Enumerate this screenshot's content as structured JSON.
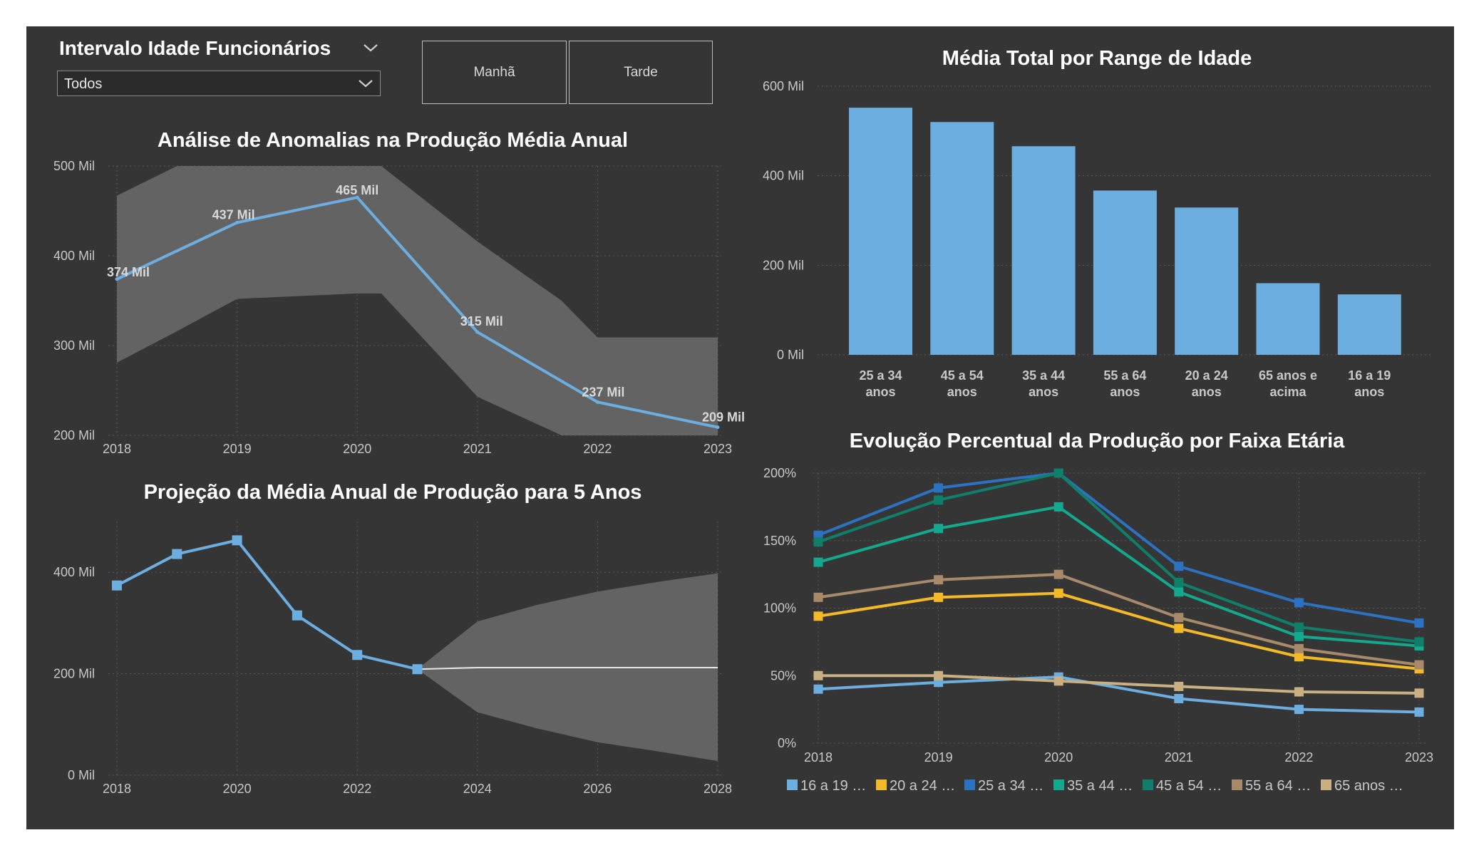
{
  "slicer": {
    "title": "Intervalo Idade Funcionários",
    "value": "Todos"
  },
  "buttons": {
    "manha": "Manhã",
    "tarde": "Tarde"
  },
  "colors": {
    "canvas": "#353535",
    "bar": "#6caee0",
    "band": "#666666",
    "forecast_line": "#e8e8e8"
  },
  "chart_data": [
    {
      "id": "anomalias",
      "type": "line",
      "title": "Análise de Anomalias na Produção Média Anual",
      "x": [
        "2018",
        "2019",
        "2020",
        "2021",
        "2022",
        "2023"
      ],
      "series": [
        {
          "values": [
            374,
            437,
            465,
            315,
            237,
            209
          ],
          "labels": [
            "374 Mil",
            "437 Mil",
            "465 Mil",
            "315 Mil",
            "237 Mil",
            "209 Mil"
          ],
          "color": "#6caee0"
        }
      ],
      "expected_range": {
        "x": [
          2018,
          2018.5,
          2019,
          2020,
          2020.2,
          2021,
          2021.7,
          2022,
          2023
        ],
        "upper": [
          467,
          500,
          500,
          500,
          500,
          416,
          350,
          309,
          309
        ],
        "lower": [
          281,
          316,
          352,
          358,
          358,
          243,
          200,
          200,
          200
        ]
      },
      "yticks": [
        "500 Mil",
        "400 Mil",
        "300 Mil",
        "200 Mil"
      ],
      "ytick_values": [
        500,
        400,
        300,
        200
      ],
      "ylim": [
        200,
        500
      ],
      "grid": true
    },
    {
      "id": "projecao",
      "type": "line",
      "title": "Projeção da Média Anual de Produção para 5 Anos",
      "x": [
        "2018",
        "2019",
        "2020",
        "2021",
        "2022",
        "2023"
      ],
      "series": [
        {
          "values": [
            374,
            436,
            463,
            315,
            237,
            209
          ],
          "color": "#6caee0"
        }
      ],
      "forecast": {
        "x": [
          2023,
          2024,
          2025,
          2026,
          2027,
          2028
        ],
        "values": [
          209,
          212,
          212,
          212,
          212,
          212
        ],
        "upper": [
          209,
          303,
          336,
          362,
          381,
          398
        ],
        "lower": [
          209,
          124,
          92,
          65,
          47,
          28
        ]
      },
      "xticks": [
        "2018",
        "2020",
        "2022",
        "2024",
        "2026",
        "2028"
      ],
      "yticks": [
        "400 Mil",
        "200 Mil",
        "0 Mil"
      ],
      "ytick_values": [
        400,
        200,
        0
      ],
      "ylim": [
        0,
        500
      ],
      "grid": true
    },
    {
      "id": "media_total",
      "type": "bar",
      "title": "Média Total por Range de Idade",
      "categories": [
        [
          "25 a 34",
          "anos"
        ],
        [
          "45 a 54",
          "anos"
        ],
        [
          "35 a 44",
          "anos"
        ],
        [
          "55 a 64",
          "anos"
        ],
        [
          "20 a 24",
          "anos"
        ],
        [
          "65 anos e",
          "acima"
        ],
        [
          "16 a 19",
          "anos"
        ]
      ],
      "values": [
        552,
        520,
        466,
        367,
        329,
        160,
        135
      ],
      "yticks": [
        "600 Mil",
        "400 Mil",
        "200 Mil",
        "0 Mil"
      ],
      "ytick_values": [
        600,
        400,
        200,
        0
      ],
      "ylim": [
        0,
        600
      ],
      "grid": true
    },
    {
      "id": "evolucao",
      "type": "line",
      "title": "Evolução Percentual da Produção por Faixa Etária",
      "x": [
        "2018",
        "2019",
        "2020",
        "2021",
        "2022",
        "2023"
      ],
      "series": [
        {
          "name": "16 a 19 …",
          "color": "#6caee0",
          "values": [
            40,
            45,
            49,
            33,
            25,
            23
          ]
        },
        {
          "name": "20 a 24 …",
          "color": "#f4b927",
          "values": [
            94,
            108,
            111,
            85,
            64,
            55
          ]
        },
        {
          "name": "25 a 34 …",
          "color": "#2b72c2",
          "values": [
            154,
            189,
            200,
            131,
            104,
            89
          ]
        },
        {
          "name": "35 a 44 …",
          "color": "#12a98f",
          "values": [
            134,
            159,
            175,
            112,
            79,
            72
          ]
        },
        {
          "name": "45 a 54 …",
          "color": "#107f69",
          "values": [
            149,
            180,
            200,
            119,
            86,
            75
          ]
        },
        {
          "name": "55 a 64 …",
          "color": "#a88a6a",
          "values": [
            108,
            121,
            125,
            93,
            70,
            58
          ]
        },
        {
          "name": "65 anos …",
          "color": "#c8b082",
          "values": [
            50,
            50,
            46,
            42,
            38,
            37
          ]
        }
      ],
      "yticks": [
        "200%",
        "150%",
        "100%",
        "50%",
        "0%"
      ],
      "ytick_values": [
        200,
        150,
        100,
        50,
        0
      ],
      "ylim": [
        0,
        200
      ],
      "legend": "bottom",
      "grid": true
    }
  ]
}
